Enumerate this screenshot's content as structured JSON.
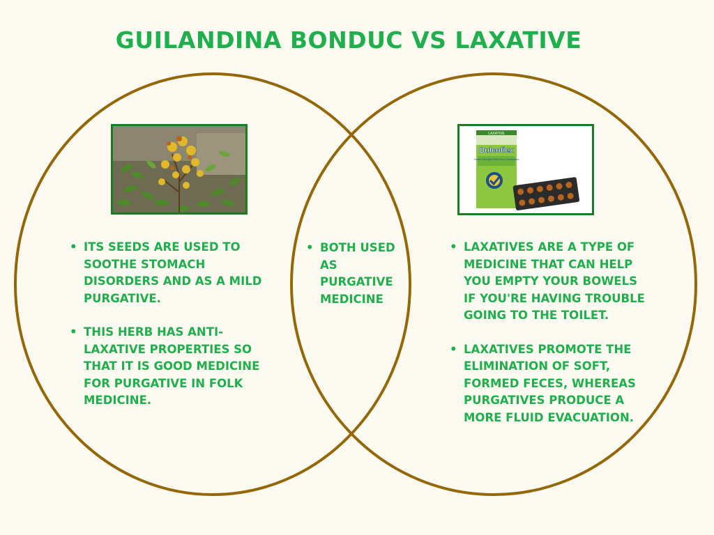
{
  "title": "GUILANDINA BONDUC VS LAXATIVE",
  "colors": {
    "circle_stroke": "#946808",
    "text_green": "#1faf4d",
    "frame_green": "#1e7a25",
    "background": "#fdfbf1"
  },
  "left": {
    "image_name": "guilandina-bonduc-plant-photo",
    "points": [
      "ITS SEEDS ARE USED TO SOOTHE STOMACH DISORDERS AND AS A MILD PURGATIVE.",
      "THIS HERB HAS ANTI-LAXATIVE PROPERTIES SO THAT IT IS GOOD MEDICINE FOR PURGATIVE IN FOLK MEDICINE."
    ]
  },
  "middle": {
    "points": [
      "BOTH USED AS PURGATIVE MEDICINE"
    ]
  },
  "right": {
    "image_name": "dulcoflex-laxative-box-photo",
    "product": {
      "tag": "LAXATIVE",
      "brand": "Dulcoflex",
      "subtitle": "Gentle Overnight Relief from Constipation"
    },
    "points": [
      "LAXATIVES ARE A TYPE OF MEDICINE THAT CAN HELP YOU EMPTY YOUR BOWELS IF YOU'RE HAVING TROUBLE GOING TO THE TOILET.",
      "LAXATIVES PROMOTE THE ELIMINATION OF SOFT, FORMED FECES, WHEREAS PURGATIVES PRODUCE A MORE FLUID EVACUATION."
    ]
  }
}
